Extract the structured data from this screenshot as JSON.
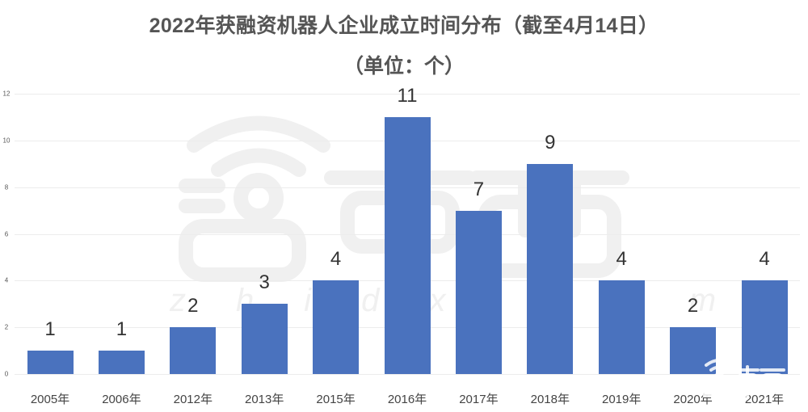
{
  "header": {
    "title": "2022年获融资机器人企业成立时间分布（截至4月14日）",
    "subtitle": "（单位：个）"
  },
  "watermark": {
    "logo_text": "智东西",
    "url_text": "zhidx.com"
  },
  "colors": {
    "bar": "#4a72be",
    "gridline": "#ececec",
    "title": "#555555"
  },
  "chart_data": {
    "type": "bar",
    "title": "2022年获融资机器人企业成立时间分布（截至4月14日）",
    "subtitle": "（单位：个）",
    "xlabel": "",
    "ylabel": "",
    "categories": [
      "2005年",
      "2006年",
      "2012年",
      "2013年",
      "2015年",
      "2016年",
      "2017年",
      "2018年",
      "2019年",
      "2020年",
      "2021年"
    ],
    "values": [
      1,
      1,
      2,
      3,
      4,
      11,
      7,
      9,
      4,
      2,
      4
    ],
    "ylim": [
      0,
      12
    ],
    "yticks": [
      "0",
      "2",
      "4",
      "6",
      "8",
      "10",
      "12"
    ],
    "grid": true,
    "legend": "none",
    "data_labels": true
  }
}
